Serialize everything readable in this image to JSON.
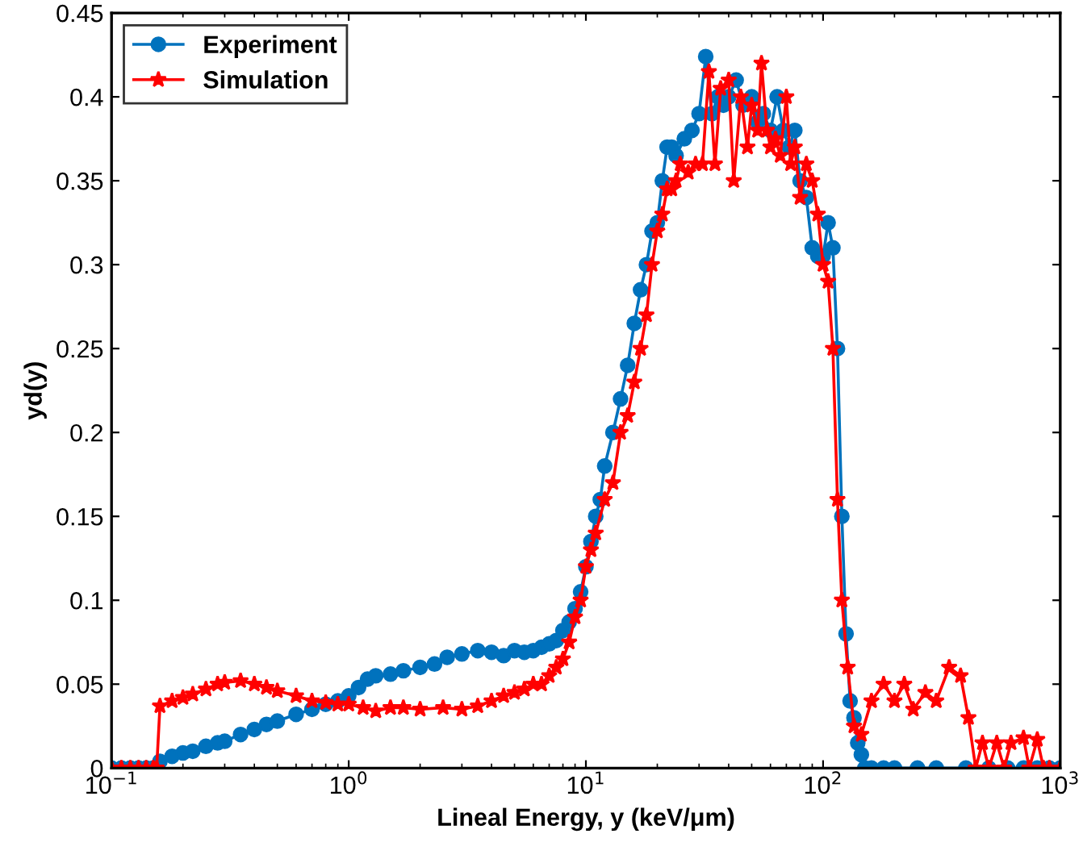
{
  "chart_data": {
    "type": "line",
    "xlabel": "Lineal Energy, y (keV/μm)",
    "ylabel": "yd(y)",
    "log": "x",
    "xlim": [
      0.1,
      1000
    ],
    "xticks": [
      {
        "value": 0.1,
        "label": "10$^{−1}$"
      },
      {
        "value": 1,
        "label": "10$^{0}$"
      },
      {
        "value": 10,
        "label": "10$^{1}$"
      },
      {
        "value": 100,
        "label": "10$^{2}$"
      },
      {
        "value": 1000,
        "label": "10$^{3}$"
      }
    ],
    "ylim": [
      0,
      0.45
    ],
    "yticks": [
      0,
      0.05,
      0.1,
      0.15,
      0.2,
      0.25,
      0.3,
      0.35,
      0.4,
      0.45
    ],
    "grid": false,
    "legend": "top left",
    "line_style": "solid",
    "series": [
      {
        "name": "Experiment",
        "color": "#0072bd",
        "marker": "circle",
        "x": [
          0.1,
          0.11,
          0.12,
          0.13,
          0.14,
          0.15,
          0.16,
          0.18,
          0.2,
          0.22,
          0.25,
          0.28,
          0.3,
          0.35,
          0.4,
          0.45,
          0.5,
          0.6,
          0.7,
          0.8,
          0.9,
          1.0,
          1.1,
          1.2,
          1.3,
          1.5,
          1.7,
          2.0,
          2.3,
          2.6,
          3.0,
          3.5,
          4.0,
          4.5,
          5.0,
          5.5,
          6.0,
          6.5,
          7.0,
          7.5,
          8.0,
          8.5,
          9.0,
          9.5,
          10,
          10.5,
          11,
          11.5,
          12,
          13,
          14,
          15,
          16,
          17,
          18,
          19,
          20,
          21,
          22,
          23,
          24,
          26,
          28,
          30,
          32,
          34,
          36,
          38,
          40,
          43,
          46,
          50,
          53,
          56,
          60,
          64,
          68,
          72,
          76,
          80,
          85,
          90,
          95,
          100,
          105,
          110,
          115,
          120,
          125,
          130,
          135,
          140,
          145,
          150,
          160,
          180,
          200,
          250,
          300,
          400,
          500,
          600,
          700,
          800,
          900,
          1000
        ],
        "values": [
          0,
          0,
          0,
          0,
          0,
          0,
          0.004,
          0.007,
          0.009,
          0.01,
          0.013,
          0.015,
          0.016,
          0.02,
          0.023,
          0.026,
          0.028,
          0.032,
          0.035,
          0.038,
          0.04,
          0.043,
          0.048,
          0.053,
          0.055,
          0.056,
          0.058,
          0.06,
          0.062,
          0.066,
          0.068,
          0.07,
          0.069,
          0.067,
          0.07,
          0.069,
          0.07,
          0.072,
          0.074,
          0.076,
          0.082,
          0.087,
          0.095,
          0.105,
          0.12,
          0.135,
          0.15,
          0.16,
          0.18,
          0.2,
          0.22,
          0.24,
          0.265,
          0.285,
          0.3,
          0.32,
          0.325,
          0.35,
          0.37,
          0.37,
          0.365,
          0.375,
          0.38,
          0.39,
          0.424,
          0.39,
          0.4,
          0.395,
          0.4,
          0.41,
          0.395,
          0.4,
          0.385,
          0.39,
          0.38,
          0.4,
          0.38,
          0.37,
          0.38,
          0.35,
          0.34,
          0.31,
          0.305,
          0.305,
          0.325,
          0.31,
          0.25,
          0.15,
          0.08,
          0.04,
          0.03,
          0.015,
          0.008,
          0,
          0,
          0,
          0,
          0,
          0,
          0,
          0,
          0,
          0,
          0,
          0,
          0
        ]
      },
      {
        "name": "Simulation",
        "color": "#ff0000",
        "marker": "star",
        "x": [
          0.1,
          0.11,
          0.12,
          0.13,
          0.14,
          0.15,
          0.155,
          0.16,
          0.18,
          0.2,
          0.22,
          0.25,
          0.28,
          0.3,
          0.35,
          0.4,
          0.45,
          0.5,
          0.6,
          0.7,
          0.8,
          0.9,
          1.0,
          1.15,
          1.3,
          1.5,
          1.7,
          2.0,
          2.5,
          3.0,
          3.5,
          4.0,
          4.5,
          5.0,
          5.5,
          6.0,
          6.5,
          7.0,
          7.5,
          8.0,
          8.5,
          9.0,
          9.5,
          10,
          10.5,
          11,
          12,
          13,
          14,
          15,
          16,
          17,
          18,
          19,
          20,
          21,
          22,
          23,
          24,
          25,
          27,
          29,
          31,
          33,
          35,
          37,
          40,
          42,
          45,
          48,
          50,
          53,
          55,
          58,
          60,
          63,
          66,
          70,
          73,
          76,
          80,
          85,
          90,
          95,
          100,
          105,
          110,
          115,
          120,
          127,
          135,
          145,
          160,
          180,
          200,
          220,
          240,
          270,
          300,
          340,
          380,
          410,
          440,
          470,
          500,
          540,
          580,
          620,
          700,
          740,
          800,
          850,
          900,
          1000
        ],
        "values": [
          0,
          0,
          0,
          0,
          0,
          0,
          0,
          0.037,
          0.04,
          0.042,
          0.044,
          0.047,
          0.05,
          0.051,
          0.052,
          0.05,
          0.048,
          0.046,
          0.043,
          0.04,
          0.039,
          0.038,
          0.038,
          0.036,
          0.034,
          0.036,
          0.036,
          0.035,
          0.036,
          0.035,
          0.037,
          0.04,
          0.043,
          0.045,
          0.047,
          0.05,
          0.05,
          0.055,
          0.06,
          0.065,
          0.075,
          0.09,
          0.1,
          0.12,
          0.13,
          0.14,
          0.16,
          0.17,
          0.2,
          0.21,
          0.23,
          0.25,
          0.27,
          0.3,
          0.32,
          0.33,
          0.345,
          0.345,
          0.35,
          0.36,
          0.355,
          0.36,
          0.36,
          0.415,
          0.36,
          0.405,
          0.41,
          0.35,
          0.4,
          0.37,
          0.395,
          0.38,
          0.42,
          0.38,
          0.37,
          0.375,
          0.365,
          0.4,
          0.36,
          0.37,
          0.34,
          0.36,
          0.35,
          0.33,
          0.3,
          0.29,
          0.25,
          0.16,
          0.1,
          0.06,
          0.025,
          0.02,
          0.04,
          0.05,
          0.04,
          0.05,
          0.035,
          0.045,
          0.04,
          0.06,
          0.055,
          0.03,
          0,
          0.015,
          0,
          0.015,
          0,
          0.015,
          0.018,
          0,
          0.017,
          0,
          0,
          0
        ]
      }
    ]
  }
}
